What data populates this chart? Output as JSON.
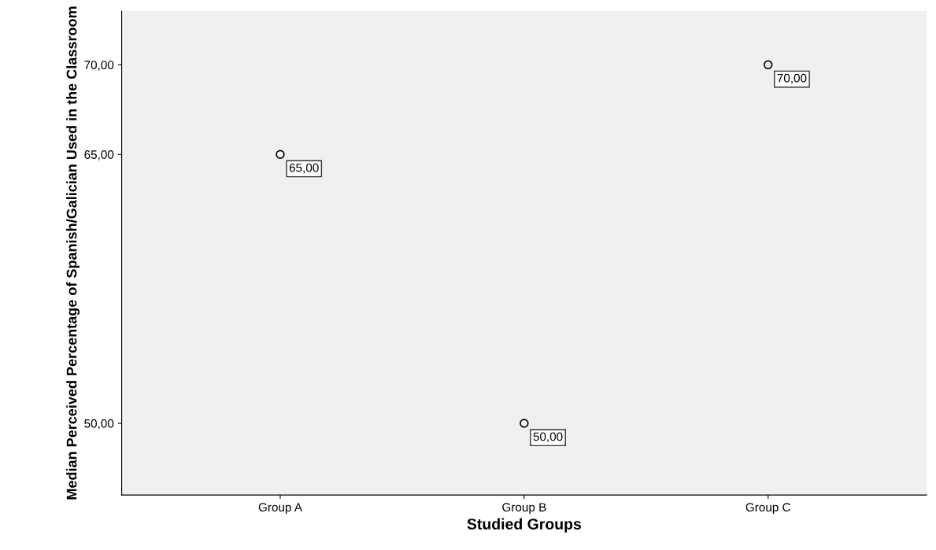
{
  "chart_data": {
    "type": "scatter",
    "xlabel": "Studied Groups",
    "ylabel": "Median Perceived Percentage of Spanish/Galician Used in the Classroom",
    "categories": [
      "Group A",
      "Group B",
      "Group C"
    ],
    "series": [
      {
        "color": "#000000",
        "values": [
          65,
          50,
          70
        ],
        "value_labels": [
          "65,00",
          "50,00",
          "70,00"
        ]
      }
    ],
    "ylim": [
      46,
      73
    ],
    "yticks": [
      {
        "value": 50,
        "label": "50,00"
      },
      {
        "value": 65,
        "label": "65,00"
      },
      {
        "value": 70,
        "label": "70,00"
      }
    ],
    "marker": "circle",
    "grid": false,
    "legend": false
  }
}
